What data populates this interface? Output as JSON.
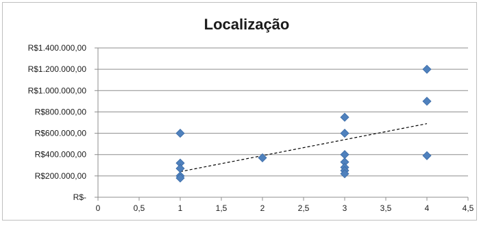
{
  "chart_data": {
    "type": "scatter",
    "title": "Localização",
    "xlabel": "",
    "ylabel": "",
    "xlim": [
      0,
      4.5
    ],
    "ylim": [
      0,
      1400000
    ],
    "x_ticks": [
      {
        "value": 0,
        "label": "0"
      },
      {
        "value": 0.5,
        "label": "0,5"
      },
      {
        "value": 1,
        "label": "1"
      },
      {
        "value": 1.5,
        "label": "1,5"
      },
      {
        "value": 2,
        "label": "2"
      },
      {
        "value": 2.5,
        "label": "2,5"
      },
      {
        "value": 3,
        "label": "3"
      },
      {
        "value": 3.5,
        "label": "3,5"
      },
      {
        "value": 4,
        "label": "4"
      },
      {
        "value": 4.5,
        "label": "4,5"
      }
    ],
    "y_ticks": [
      {
        "value": 0,
        "label": "R$-"
      },
      {
        "value": 200000,
        "label": "R$200.000,00"
      },
      {
        "value": 400000,
        "label": "R$400.000,00"
      },
      {
        "value": 600000,
        "label": "R$600.000,00"
      },
      {
        "value": 800000,
        "label": "R$800.000,00"
      },
      {
        "value": 1000000,
        "label": "R$1.000.000,00"
      },
      {
        "value": 1200000,
        "label": "R$1.200.000,00"
      },
      {
        "value": 1400000,
        "label": "R$1.400.000,00"
      }
    ],
    "grid": "horizontal",
    "legend": "none",
    "marker_color": "#4f81bd",
    "trendline": {
      "style": "dashed",
      "color": "#000000",
      "x": [
        1,
        4
      ],
      "y": [
        240000,
        690000
      ]
    },
    "points": [
      {
        "x": 1,
        "y": 600000
      },
      {
        "x": 1,
        "y": 320000
      },
      {
        "x": 1,
        "y": 270000
      },
      {
        "x": 1,
        "y": 200000
      },
      {
        "x": 1,
        "y": 180000
      },
      {
        "x": 2,
        "y": 370000
      },
      {
        "x": 3,
        "y": 750000
      },
      {
        "x": 3,
        "y": 600000
      },
      {
        "x": 3,
        "y": 400000
      },
      {
        "x": 3,
        "y": 330000
      },
      {
        "x": 3,
        "y": 280000
      },
      {
        "x": 3,
        "y": 250000
      },
      {
        "x": 3,
        "y": 220000
      },
      {
        "x": 4,
        "y": 1200000
      },
      {
        "x": 4,
        "y": 900000
      },
      {
        "x": 4,
        "y": 390000
      }
    ]
  }
}
